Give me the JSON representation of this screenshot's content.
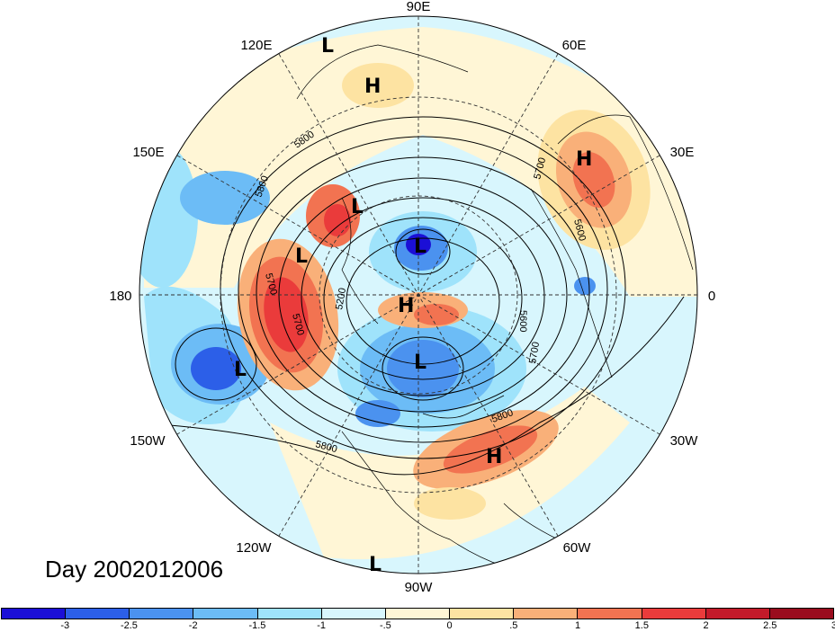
{
  "title_day": "Day 2002012006",
  "lon_labels": {
    "e90": "90E",
    "e60": "60E",
    "e30": "30E",
    "zero": "0",
    "w30": "30W",
    "w60": "60W",
    "w90": "90W",
    "w120": "120W",
    "w150": "150W",
    "d180": "180",
    "e150": "150E",
    "e120": "120E"
  },
  "pressure_centers": [
    "L",
    "H",
    "H",
    "L",
    "L",
    "L",
    "H",
    "L",
    "L",
    "H",
    "L"
  ],
  "contour_labels": [
    "5800",
    "5800",
    "5700",
    "5700",
    "5200",
    "5600",
    "5700",
    "5800",
    "5800",
    "5700",
    "5600"
  ],
  "colorbar": {
    "colors": [
      "#1b0fd6",
      "#2c5fe8",
      "#4b92ef",
      "#6cbcf6",
      "#9fe3fb",
      "#d8f6fd",
      "#fff6d6",
      "#fde3a2",
      "#f9b079",
      "#f27351",
      "#ea3b3b",
      "#c31a2a",
      "#9a0c1e"
    ],
    "ticks": [
      "-3",
      "-2.5",
      "-2",
      "-1.5",
      "-1",
      "-.5",
      "0",
      ".5",
      "1",
      "1.5",
      "2",
      "2.5",
      "3"
    ]
  }
}
